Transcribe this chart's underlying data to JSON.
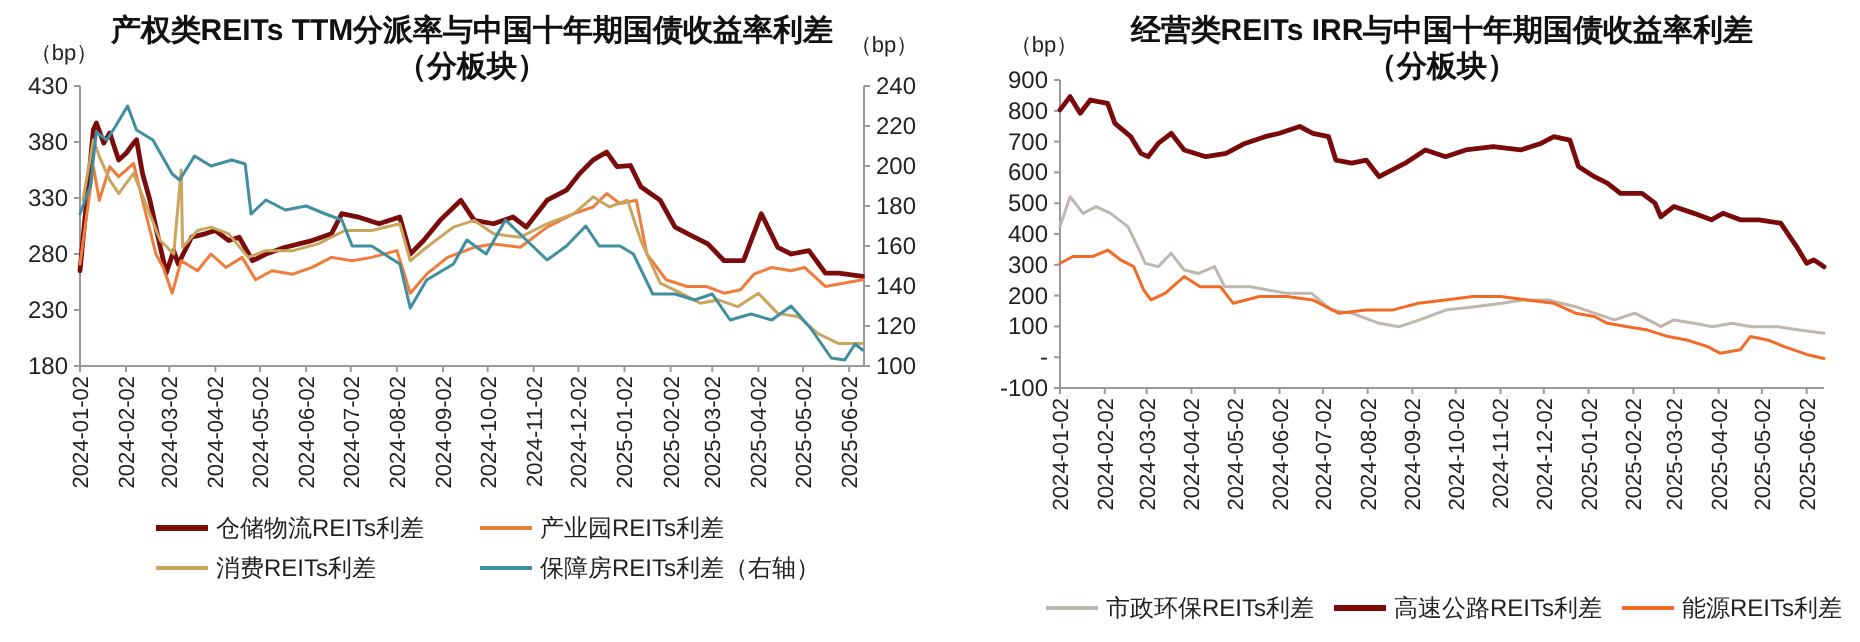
{
  "chart_data": [
    {
      "type": "line",
      "title": "产权类REITs TTM分派率与中国十年期国债收益率利差",
      "subtitle": "（分板块）",
      "ylabel": "（bp）",
      "y2label": "（bp）",
      "legend": "bottom",
      "xlim": [
        "2024-01-02",
        "2025-06-12"
      ],
      "xticks": [
        "2024-01-02",
        "2024-02-02",
        "2024-03-02",
        "2024-04-02",
        "2024-05-02",
        "2024-06-02",
        "2024-07-02",
        "2024-08-02",
        "2024-09-02",
        "2024-10-02",
        "2024-11-02",
        "2024-12-02",
        "2025-01-02",
        "2025-02-02",
        "2025-03-02",
        "2025-04-02",
        "2025-05-02",
        "2025-06-02"
      ],
      "ylim": [
        180,
        430
      ],
      "yticks": [
        180,
        230,
        280,
        330,
        380,
        430
      ],
      "y2lim": [
        100,
        240
      ],
      "y2ticks": [
        100,
        120,
        140,
        160,
        180,
        200,
        220,
        240
      ],
      "series": [
        {
          "name": "仓储物流REITs利差",
          "color": "#7b0c0c",
          "x": [
            "2024-01-02",
            "2024-01-11",
            "2024-01-13",
            "2024-01-18",
            "2024-01-22",
            "2024-01-28",
            "2024-02-02",
            "2024-02-07",
            "2024-02-09",
            "2024-02-13",
            "2024-02-18",
            "2024-02-25",
            "2024-02-29",
            "2024-03-05",
            "2024-03-08",
            "2024-03-17",
            "2024-03-26",
            "2024-04-02",
            "2024-04-11",
            "2024-04-18",
            "2024-04-27",
            "2024-05-06",
            "2024-05-19",
            "2024-06-06",
            "2024-06-19",
            "2024-06-26",
            "2024-07-07",
            "2024-07-21",
            "2024-08-04",
            "2024-08-11",
            "2024-08-20",
            "2024-08-31",
            "2024-09-14",
            "2024-09-23",
            "2024-10-06",
            "2024-10-19",
            "2024-10-28",
            "2024-11-11",
            "2024-11-24",
            "2024-12-03",
            "2024-12-12",
            "2024-12-21",
            "2024-12-28",
            "2025-01-06",
            "2025-01-13",
            "2025-01-26",
            "2025-02-05",
            "2025-02-18",
            "2025-02-27",
            "2025-03-10",
            "2025-03-23",
            "2025-04-04",
            "2025-04-15",
            "2025-04-24",
            "2025-05-06",
            "2025-05-17",
            "2025-05-26",
            "2025-06-11"
          ],
          "values": [
            265,
            391,
            397,
            379,
            388,
            364,
            370,
            379,
            382,
            352,
            328,
            286,
            263,
            283,
            271,
            295,
            298,
            301,
            292,
            295,
            274,
            280,
            286,
            292,
            298,
            316,
            313,
            307,
            313,
            280,
            292,
            310,
            328,
            310,
            307,
            313,
            304,
            328,
            337,
            352,
            364,
            371,
            358,
            359,
            340,
            328,
            304,
            295,
            289,
            274,
            274,
            316,
            286,
            280,
            283,
            263,
            263,
            260
          ]
        },
        {
          "name": "产业园REITs利差",
          "color": "#f07c3c",
          "x": [
            "2024-01-02",
            "2024-01-11",
            "2024-01-15",
            "2024-01-22",
            "2024-01-28",
            "2024-02-07",
            "2024-02-13",
            "2024-02-22",
            "2024-02-27",
            "2024-03-04",
            "2024-03-10",
            "2024-03-21",
            "2024-03-30",
            "2024-04-09",
            "2024-04-20",
            "2024-04-29",
            "2024-05-10",
            "2024-05-24",
            "2024-06-06",
            "2024-06-19",
            "2024-07-03",
            "2024-07-16",
            "2024-08-02",
            "2024-08-11",
            "2024-08-22",
            "2024-09-05",
            "2024-09-23",
            "2024-10-06",
            "2024-10-24",
            "2024-11-11",
            "2024-11-29",
            "2024-12-12",
            "2024-12-21",
            "2024-12-30",
            "2025-01-10",
            "2025-01-17",
            "2025-01-30",
            "2025-02-13",
            "2025-02-26",
            "2025-03-10",
            "2025-03-21",
            "2025-03-30",
            "2025-04-11",
            "2025-04-24",
            "2025-05-03",
            "2025-05-17",
            "2025-06-11"
          ],
          "values": [
            271,
            358,
            328,
            358,
            349,
            361,
            328,
            280,
            268,
            245,
            274,
            265,
            280,
            268,
            277,
            257,
            265,
            262,
            268,
            277,
            274,
            277,
            283,
            245,
            262,
            277,
            286,
            289,
            286,
            304,
            316,
            322,
            334,
            325,
            328,
            280,
            257,
            251,
            251,
            245,
            248,
            262,
            268,
            265,
            268,
            251,
            257
          ]
        },
        {
          "name": "消费REITs利差",
          "color": "#c9a55e",
          "x": [
            "2024-01-04",
            "2024-01-11",
            "2024-01-15",
            "2024-01-22",
            "2024-01-28",
            "2024-02-07",
            "2024-02-25",
            "2024-03-05",
            "2024-03-10",
            "2024-03-11",
            "2024-03-21",
            "2024-03-30",
            "2024-04-11",
            "2024-04-24",
            "2024-05-06",
            "2024-05-24",
            "2024-06-10",
            "2024-06-28",
            "2024-07-16",
            "2024-08-04",
            "2024-08-11",
            "2024-08-22",
            "2024-09-09",
            "2024-09-23",
            "2024-10-06",
            "2024-10-24",
            "2024-11-11",
            "2024-11-29",
            "2024-12-12",
            "2024-12-23",
            "2025-01-04",
            "2025-01-13",
            "2025-01-26",
            "2025-02-09",
            "2025-02-22",
            "2025-03-06",
            "2025-03-19",
            "2025-04-02",
            "2025-04-15",
            "2025-04-29",
            "2025-05-12",
            "2025-05-26",
            "2025-06-11"
          ],
          "values": [
            328,
            382,
            367,
            346,
            334,
            352,
            292,
            280,
            355,
            286,
            301,
            304,
            298,
            277,
            283,
            283,
            289,
            301,
            301,
            307,
            274,
            286,
            304,
            310,
            298,
            295,
            307,
            316,
            331,
            322,
            328,
            292,
            254,
            245,
            236,
            239,
            233,
            245,
            227,
            224,
            209,
            200,
            200
          ]
        },
        {
          "name": "保障房REITs利差（右轴）",
          "color": "#3f8fa0",
          "axis": "y2",
          "x": [
            "2024-01-02",
            "2024-01-09",
            "2024-01-13",
            "2024-01-20",
            "2024-01-26",
            "2024-02-03",
            "2024-02-09",
            "2024-02-20",
            "2024-03-04",
            "2024-03-09",
            "2024-03-19",
            "2024-03-30",
            "2024-04-13",
            "2024-04-22",
            "2024-04-26",
            "2024-05-06",
            "2024-05-19",
            "2024-06-02",
            "2024-06-15",
            "2024-06-26",
            "2024-07-03",
            "2024-07-16",
            "2024-08-04",
            "2024-08-11",
            "2024-08-22",
            "2024-09-09",
            "2024-09-18",
            "2024-10-01",
            "2024-10-14",
            "2024-10-28",
            "2024-11-11",
            "2024-11-24",
            "2024-12-07",
            "2024-12-16",
            "2024-12-30",
            "2025-01-08",
            "2025-01-21",
            "2025-02-05",
            "2025-02-18",
            "2025-03-02",
            "2025-03-14",
            "2025-03-28",
            "2025-04-11",
            "2025-04-24",
            "2025-05-07",
            "2025-05-21",
            "2025-05-30",
            "2025-06-06",
            "2025-06-11"
          ],
          "values": [
            176,
            190,
            217,
            213,
            220,
            230,
            218,
            213,
            196,
            193,
            205,
            200,
            203,
            201,
            176,
            183,
            178,
            180,
            176,
            173,
            160,
            160,
            151,
            129,
            143,
            151,
            163,
            156,
            173,
            163,
            153,
            160,
            170,
            160,
            160,
            156,
            136,
            136,
            133,
            136,
            123,
            126,
            123,
            130,
            119,
            104,
            103,
            111,
            108
          ]
        }
      ]
    },
    {
      "type": "line",
      "title": "经营类REITs IRR与中国十年期国债收益率利差",
      "subtitle": "（分板块）",
      "ylabel": "（bp）",
      "legend": "bottom",
      "xlim": [
        "2024-01-02",
        "2025-06-14"
      ],
      "xticks": [
        "2024-01-02",
        "2024-02-02",
        "2024-03-02",
        "2024-04-02",
        "2024-05-02",
        "2024-06-02",
        "2024-07-02",
        "2024-08-02",
        "2024-09-02",
        "2024-10-02",
        "2024-11-02",
        "2024-12-02",
        "2025-01-02",
        "2025-02-02",
        "2025-03-02",
        "2025-04-02",
        "2025-05-02",
        "2025-06-02"
      ],
      "ylim": [
        -100,
        900
      ],
      "yticks": [
        -100,
        {
          "value": 0,
          "label": "-"
        },
        100,
        200,
        300,
        400,
        500,
        600,
        700,
        800,
        900
      ],
      "series": [
        {
          "name": "市政环保REITs利差",
          "color": "#bdb8ad",
          "x": [
            "2024-01-02",
            "2024-01-09",
            "2024-01-18",
            "2024-01-27",
            "2024-02-06",
            "2024-02-18",
            "2024-02-27",
            "2024-03-01",
            "2024-03-10",
            "2024-03-19",
            "2024-03-28",
            "2024-04-07",
            "2024-04-18",
            "2024-04-25",
            "2024-05-13",
            "2024-06-06",
            "2024-06-24",
            "2024-07-08",
            "2024-07-22",
            "2024-08-10",
            "2024-08-24",
            "2024-09-07",
            "2024-09-25",
            "2024-10-15",
            "2024-11-03",
            "2024-11-17",
            "2024-12-05",
            "2024-12-24",
            "2025-01-06",
            "2025-01-20",
            "2025-02-03",
            "2025-02-17",
            "2025-02-21",
            "2025-03-02",
            "2025-03-16",
            "2025-03-29",
            "2025-04-11",
            "2025-04-25",
            "2025-05-13",
            "2025-05-28",
            "2025-06-14"
          ],
          "values": [
            424,
            521,
            467,
            489,
            467,
            424,
            337,
            305,
            294,
            337,
            283,
            272,
            294,
            229,
            229,
            208,
            208,
            153,
            143,
            110,
            99,
            121,
            153,
            164,
            175,
            186,
            186,
            164,
            143,
            121,
            143,
            110,
            99,
            121,
            110,
            99,
            110,
            99,
            99,
            88,
            78
          ]
        },
        {
          "name": "高速公路REITs利差",
          "color": "#7a0a0a",
          "x": [
            "2024-01-02",
            "2024-01-09",
            "2024-01-16",
            "2024-01-23",
            "2024-02-04",
            "2024-02-09",
            "2024-02-20",
            "2024-02-27",
            "2024-03-03",
            "2024-03-10",
            "2024-03-19",
            "2024-03-28",
            "2024-04-12",
            "2024-04-26",
            "2024-05-09",
            "2024-05-23",
            "2024-06-02",
            "2024-06-16",
            "2024-06-25",
            "2024-07-06",
            "2024-07-11",
            "2024-07-22",
            "2024-08-01",
            "2024-08-10",
            "2024-08-19",
            "2024-08-28",
            "2024-09-11",
            "2024-09-25",
            "2024-10-09",
            "2024-10-28",
            "2024-11-16",
            "2024-11-30",
            "2024-12-09",
            "2024-12-20",
            "2024-12-26",
            "2025-01-06",
            "2025-01-15",
            "2025-01-24",
            "2025-02-08",
            "2025-02-17",
            "2025-02-21",
            "2025-03-02",
            "2025-03-16",
            "2025-03-28",
            "2025-04-05",
            "2025-04-17",
            "2025-04-30",
            "2025-05-15",
            "2025-05-26",
            "2025-06-02",
            "2025-06-07",
            "2025-06-14"
          ],
          "values": [
            803,
            846,
            792,
            835,
            824,
            759,
            716,
            662,
            651,
            694,
            727,
            673,
            651,
            662,
            694,
            716,
            727,
            749,
            727,
            716,
            640,
            630,
            640,
            586,
            608,
            630,
            673,
            651,
            673,
            684,
            673,
            694,
            716,
            705,
            619,
            586,
            565,
            532,
            532,
            500,
            456,
            489,
            467,
            446,
            467,
            446,
            446,
            435,
            359,
            305,
            316,
            294
          ]
        },
        {
          "name": "能源REITs利差",
          "color": "#f26b26",
          "x": [
            "2024-01-02",
            "2024-01-11",
            "2024-01-25",
            "2024-02-04",
            "2024-02-13",
            "2024-02-22",
            "2024-02-29",
            "2024-03-05",
            "2024-03-15",
            "2024-03-28",
            "2024-04-08",
            "2024-04-22",
            "2024-05-01",
            "2024-05-19",
            "2024-06-07",
            "2024-06-25",
            "2024-07-13",
            "2024-08-01",
            "2024-08-19",
            "2024-09-06",
            "2024-09-25",
            "2024-10-14",
            "2024-11-02",
            "2024-11-20",
            "2024-12-09",
            "2024-12-24",
            "2025-01-06",
            "2025-01-15",
            "2025-01-29",
            "2025-02-12",
            "2025-02-26",
            "2025-03-11",
            "2025-03-25",
            "2025-04-03",
            "2025-04-17",
            "2025-04-24",
            "2025-05-06",
            "2025-05-17",
            "2025-06-02",
            "2025-06-14"
          ],
          "values": [
            305,
            327,
            327,
            348,
            316,
            294,
            218,
            186,
            208,
            262,
            229,
            229,
            175,
            197,
            197,
            186,
            143,
            153,
            153,
            175,
            186,
            197,
            197,
            186,
            175,
            143,
            132,
            110,
            99,
            88,
            67,
            56,
            35,
            13,
            24,
            67,
            56,
            35,
            9,
            -4
          ]
        }
      ]
    }
  ]
}
